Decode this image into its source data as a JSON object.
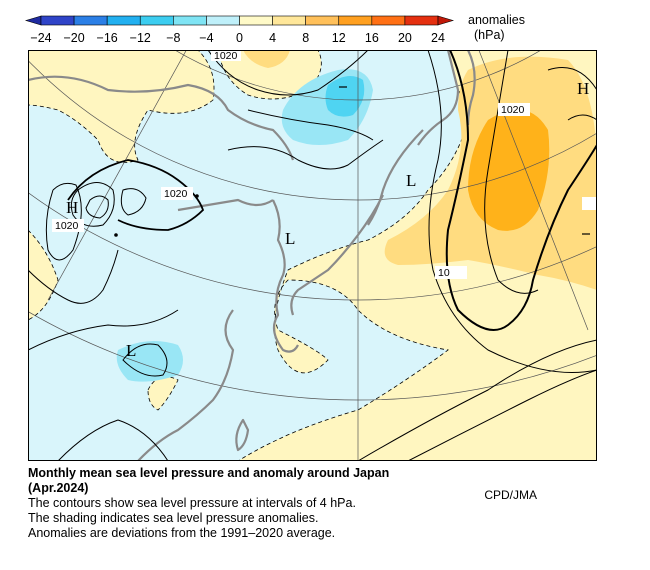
{
  "colorbar": {
    "title_line1": "anomalies",
    "title_line2": "(hPa)",
    "ticks": [
      "−24",
      "−20",
      "−16",
      "−12",
      "−8",
      "−4",
      "0",
      "4",
      "8",
      "12",
      "16",
      "20",
      "24"
    ],
    "colors": [
      "#2f44c8",
      "#2b7fe6",
      "#22b0f0",
      "#3ccdf0",
      "#7fe4f4",
      "#bff0fa",
      "#fffac8",
      "#ffe79a",
      "#ffc05a",
      "#ffa020",
      "#ff7015",
      "#e53010"
    ]
  },
  "map": {
    "credit": "CPD/JMA",
    "pressure_labels": [
      "1020",
      "1020",
      "1020",
      "1020",
      "10"
    ],
    "system_letters": [
      "H",
      "H",
      "L",
      "L",
      "L"
    ],
    "land_color": "#8a8a8a",
    "colors": {
      "positive_light": "#fff6c0",
      "positive_mid": "#ffdc80",
      "positive_strong": "#ffb21a",
      "negative_light": "#d9f5fb",
      "negative_mid": "#99e6f5",
      "negative_strong": "#4fd4f2"
    }
  },
  "caption": {
    "title_line1": "Monthly mean sea level pressure and anomaly around Japan",
    "title_line2": "(Apr.2024)",
    "line1": "The contours show sea level pressure at intervals of 4 hPa.",
    "line2": "The shading indicates sea level pressure anomalies.",
    "line3": "Anomalies are deviations from the 1991–2020 average."
  }
}
